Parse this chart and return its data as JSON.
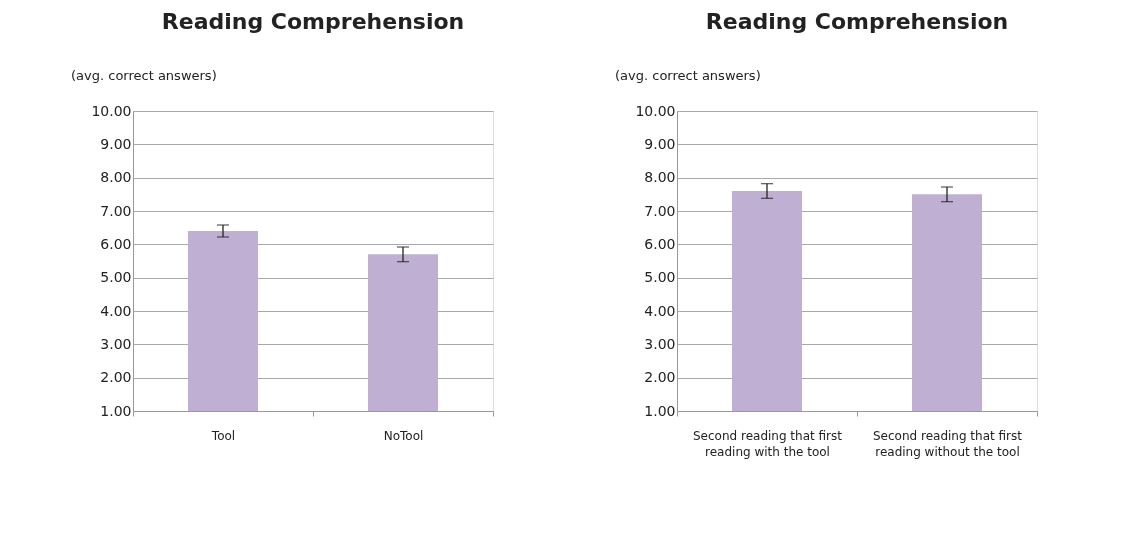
{
  "chart_data": [
    {
      "type": "bar",
      "title": "Reading Comprehension",
      "ylabel": "(avg. correct answers)",
      "categories": [
        "Tool",
        "NoTool"
      ],
      "series": [
        {
          "color": "#bfb0d3",
          "values": [
            6.4,
            5.7
          ],
          "errors": [
            0.18,
            0.22
          ]
        }
      ],
      "ylim": [
        1,
        10
      ],
      "yticks": [
        {
          "value": 1,
          "label": "1.00"
        },
        {
          "value": 2,
          "label": "2.00"
        },
        {
          "value": 3,
          "label": "3.00"
        },
        {
          "value": 4,
          "label": "4.00"
        },
        {
          "value": 5,
          "label": "5.00"
        },
        {
          "value": 6,
          "label": "6.00"
        },
        {
          "value": 7,
          "label": "7.00"
        },
        {
          "value": 8,
          "label": "8.00"
        },
        {
          "value": 9,
          "label": "9.00"
        },
        {
          "value": 10,
          "label": "10.00"
        }
      ],
      "grid": "y",
      "legend": false
    },
    {
      "type": "bar",
      "title": "Reading Comprehension",
      "ylabel": "(avg. correct answers)",
      "categories": [
        "Second reading that first reading with the tool",
        "Second reading that first reading without the tool"
      ],
      "series": [
        {
          "color": "#bfb0d3",
          "values": [
            7.6,
            7.5
          ],
          "errors": [
            0.22,
            0.22
          ]
        }
      ],
      "ylim": [
        1,
        10
      ],
      "yticks": [
        {
          "value": 1,
          "label": "1.00"
        },
        {
          "value": 2,
          "label": "2.00"
        },
        {
          "value": 3,
          "label": "3.00"
        },
        {
          "value": 4,
          "label": "4.00"
        },
        {
          "value": 5,
          "label": "5.00"
        },
        {
          "value": 6,
          "label": "6.00"
        },
        {
          "value": 7,
          "label": "7.00"
        },
        {
          "value": 8,
          "label": "8.00"
        },
        {
          "value": 9,
          "label": "9.00"
        },
        {
          "value": 10,
          "label": "10.00"
        }
      ],
      "grid": "y",
      "legend": false
    }
  ]
}
